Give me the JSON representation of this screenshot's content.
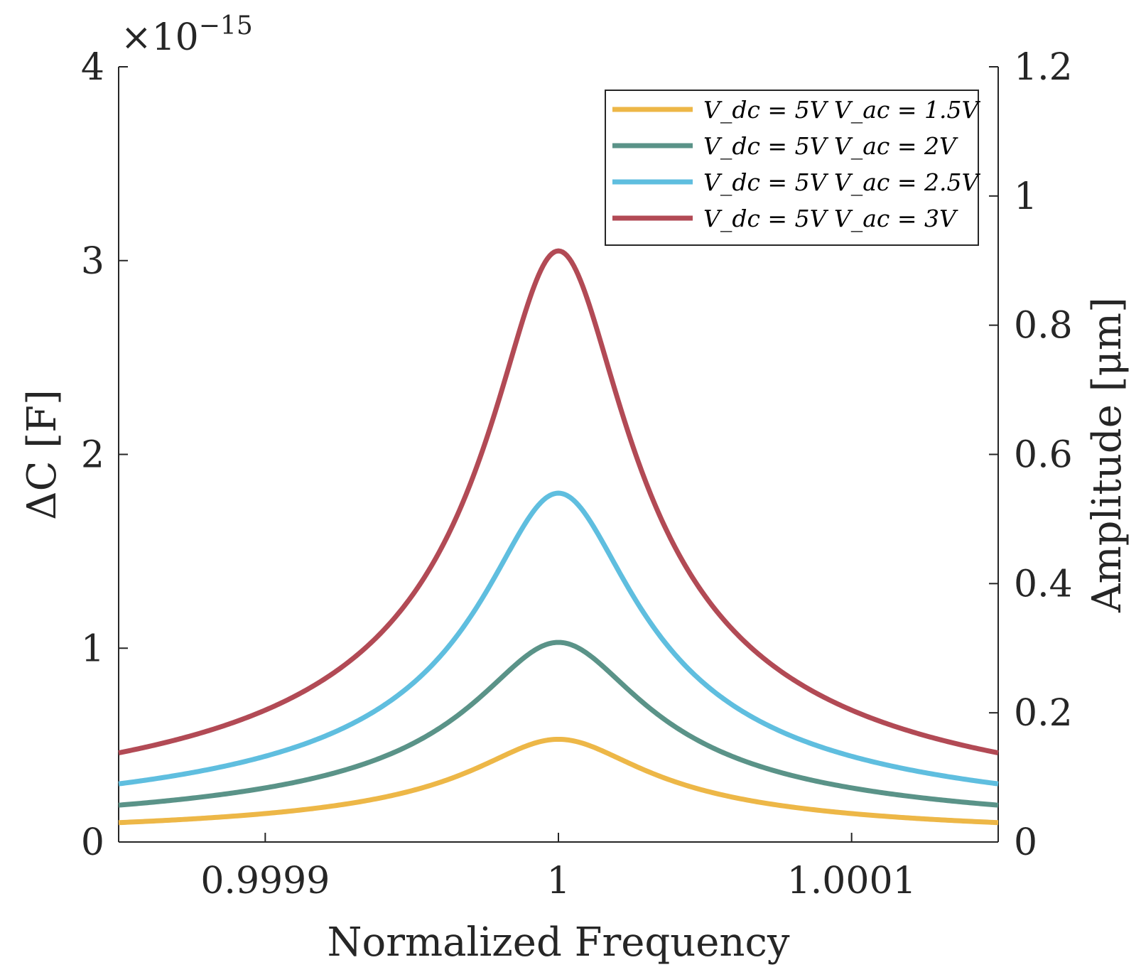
{
  "chart_data": {
    "type": "line",
    "xlabel": "Normalized Frequency",
    "ylabel_left": "ΔC [F]",
    "ylabel_right": "Amplitude [μm]",
    "exponent_label": "×10−15",
    "xlim": [
      0.99985,
      1.00015
    ],
    "ylim_left": [
      0,
      4
    ],
    "ylim_right": [
      0,
      1.2
    ],
    "x_ticks": [
      0.9999,
      1,
      1.0001
    ],
    "x_tick_labels": [
      "0.9999",
      "1",
      "1.0001"
    ],
    "yl_ticks": [
      0,
      1,
      2,
      3,
      4
    ],
    "yl_tick_labels": [
      "0",
      "1",
      "2",
      "3",
      "4"
    ],
    "yr_ticks": [
      0,
      0.2,
      0.4,
      0.6,
      0.8,
      1,
      1.2
    ],
    "yr_tick_labels": [
      "0",
      "0.2",
      "0.4",
      "0.6",
      "0.8",
      "1",
      "1.2"
    ],
    "center_x": 1.0,
    "half_width": 2.65e-05,
    "legend_position": "top-right",
    "series": [
      {
        "name": "V_dc = 5V  V_ac = 1.5V",
        "color": "#EDB747",
        "peak": 0.53,
        "edge_value": 0.1
      },
      {
        "name": "V_dc = 5V  V_ac = 2V",
        "color": "#5A9388",
        "peak": 1.03,
        "edge_value": 0.19
      },
      {
        "name": "V_dc = 5V  V_ac = 2.5V",
        "color": "#5FBEDF",
        "peak": 1.8,
        "edge_value": 0.3
      },
      {
        "name": "V_dc = 5V  V_ac = 3V",
        "color": "#B24A55",
        "peak": 3.05,
        "edge_value": 0.46
      }
    ]
  }
}
